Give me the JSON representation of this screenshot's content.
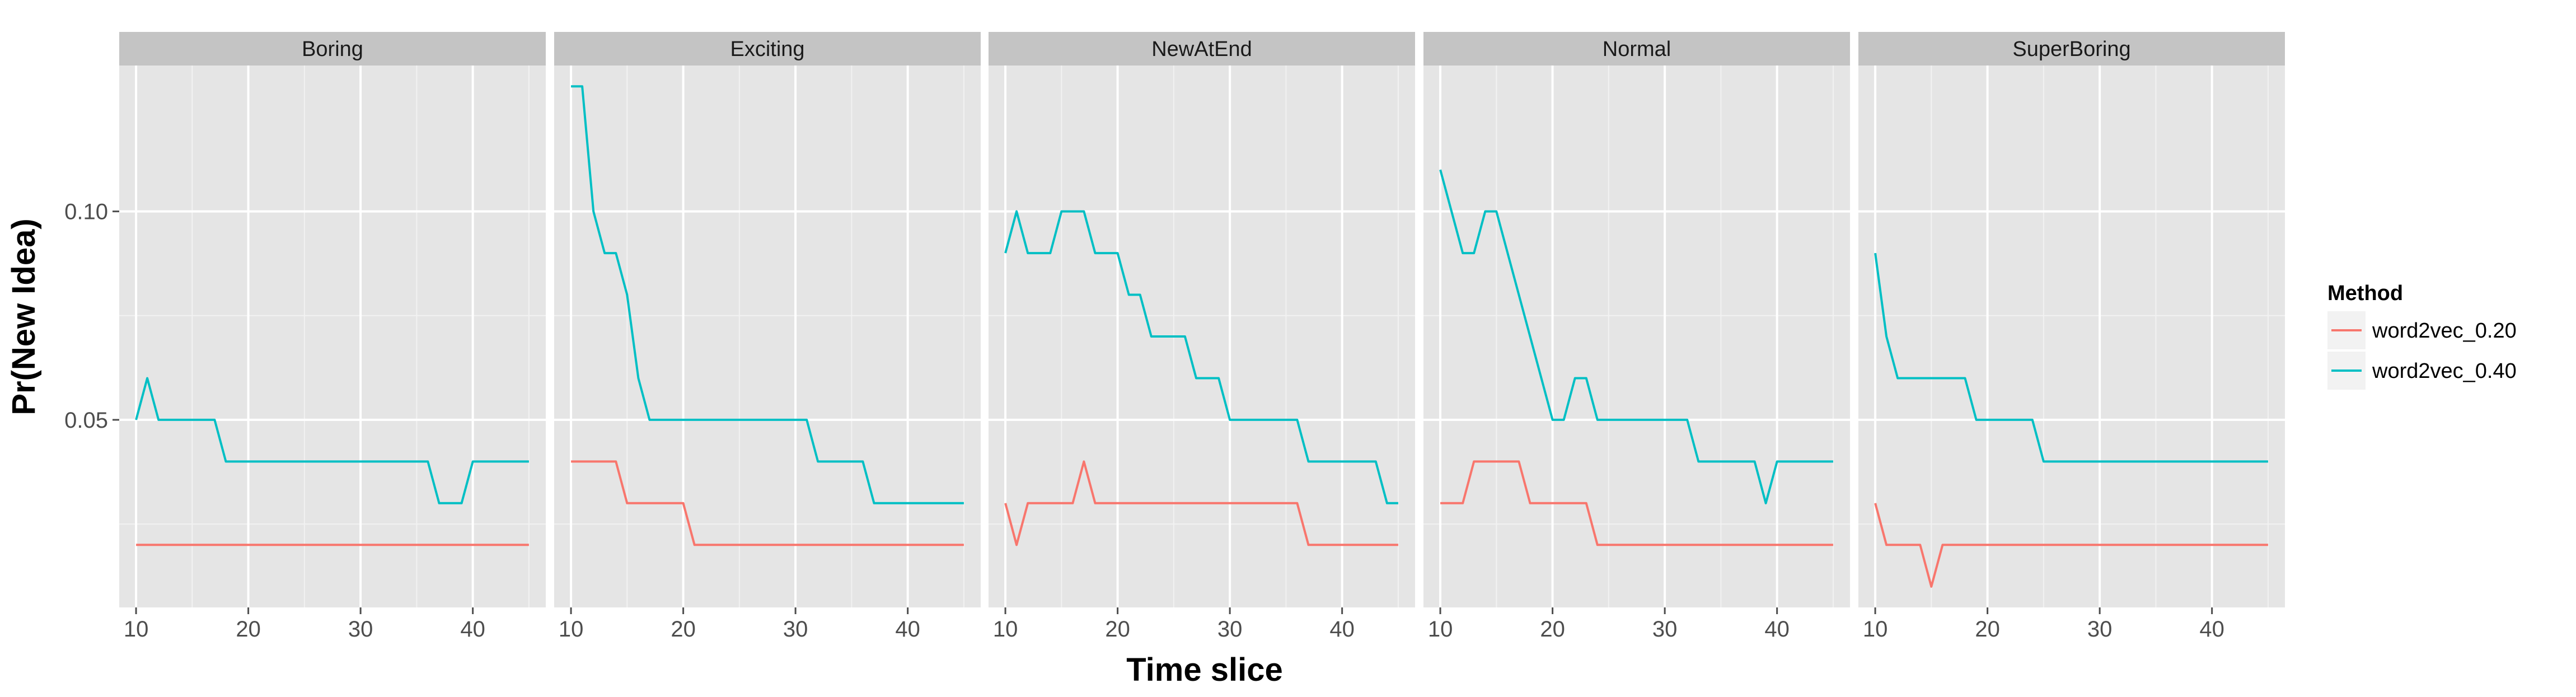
{
  "chart_data": {
    "type": "line",
    "xlabel": "Time slice",
    "ylabel": "Pr(New Idea)",
    "xlim": [
      8.5,
      46.5
    ],
    "ylim": [
      0.005,
      0.135
    ],
    "x_ticks": [
      10,
      20,
      30,
      40
    ],
    "y_ticks": [
      0.05,
      0.1
    ],
    "y_tick_labels": [
      "0.05",
      "0.10"
    ],
    "grid": true,
    "legend": {
      "title": "Method",
      "position": "right"
    },
    "colors": {
      "word2vec_0.20": "#F8766D",
      "word2vec_0.40": "#00BFC4"
    },
    "facets": [
      {
        "name": "Boring",
        "series": [
          {
            "name": "word2vec_0.20",
            "x": [
              10,
              45
            ],
            "y": [
              0.02,
              0.02
            ]
          },
          {
            "name": "word2vec_0.40",
            "x": [
              10,
              11,
              12,
              13,
              17,
              18,
              36,
              37,
              39,
              40,
              45
            ],
            "y": [
              0.05,
              0.06,
              0.05,
              0.05,
              0.05,
              0.04,
              0.04,
              0.03,
              0.03,
              0.04,
              0.04
            ]
          }
        ]
      },
      {
        "name": "Exciting",
        "series": [
          {
            "name": "word2vec_0.20",
            "x": [
              10,
              14,
              15,
              20,
              21,
              45
            ],
            "y": [
              0.04,
              0.04,
              0.03,
              0.03,
              0.02,
              0.02
            ]
          },
          {
            "name": "word2vec_0.40",
            "x": [
              10,
              11,
              12,
              13,
              14,
              15,
              16,
              17,
              31,
              32,
              36,
              37,
              45
            ],
            "y": [
              0.13,
              0.13,
              0.1,
              0.09,
              0.09,
              0.08,
              0.06,
              0.05,
              0.05,
              0.04,
              0.04,
              0.03,
              0.03
            ]
          }
        ]
      },
      {
        "name": "NewAtEnd",
        "series": [
          {
            "name": "word2vec_0.20",
            "x": [
              10,
              11,
              12,
              16,
              17,
              18,
              36,
              37,
              45
            ],
            "y": [
              0.03,
              0.02,
              0.03,
              0.03,
              0.04,
              0.03,
              0.03,
              0.02,
              0.02
            ]
          },
          {
            "name": "word2vec_0.40",
            "x": [
              10,
              11,
              12,
              14,
              15,
              17,
              18,
              20,
              21,
              22,
              23,
              26,
              27,
              29,
              30,
              36,
              37,
              43,
              44,
              45
            ],
            "y": [
              0.09,
              0.1,
              0.09,
              0.09,
              0.1,
              0.1,
              0.09,
              0.09,
              0.08,
              0.08,
              0.07,
              0.07,
              0.06,
              0.06,
              0.05,
              0.05,
              0.04,
              0.04,
              0.03,
              0.03
            ]
          }
        ]
      },
      {
        "name": "Normal",
        "series": [
          {
            "name": "word2vec_0.20",
            "x": [
              10,
              12,
              13,
              17,
              18,
              23,
              24,
              45
            ],
            "y": [
              0.03,
              0.03,
              0.04,
              0.04,
              0.03,
              0.03,
              0.02,
              0.02
            ]
          },
          {
            "name": "word2vec_0.40",
            "x": [
              10,
              12,
              13,
              14,
              15,
              20,
              21,
              22,
              23,
              24,
              32,
              33,
              38,
              39,
              40,
              45
            ],
            "y": [
              0.11,
              0.09,
              0.09,
              0.1,
              0.1,
              0.05,
              0.05,
              0.06,
              0.06,
              0.05,
              0.05,
              0.04,
              0.04,
              0.03,
              0.04,
              0.04
            ]
          }
        ]
      },
      {
        "name": "SuperBoring",
        "series": [
          {
            "name": "word2vec_0.20",
            "x": [
              10,
              11,
              14,
              15,
              16,
              45
            ],
            "y": [
              0.03,
              0.02,
              0.02,
              0.01,
              0.02,
              0.02
            ]
          },
          {
            "name": "word2vec_0.40",
            "x": [
              10,
              11,
              12,
              18,
              19,
              24,
              25,
              45
            ],
            "y": [
              0.09,
              0.07,
              0.06,
              0.06,
              0.05,
              0.05,
              0.04,
              0.04
            ]
          }
        ]
      }
    ]
  }
}
